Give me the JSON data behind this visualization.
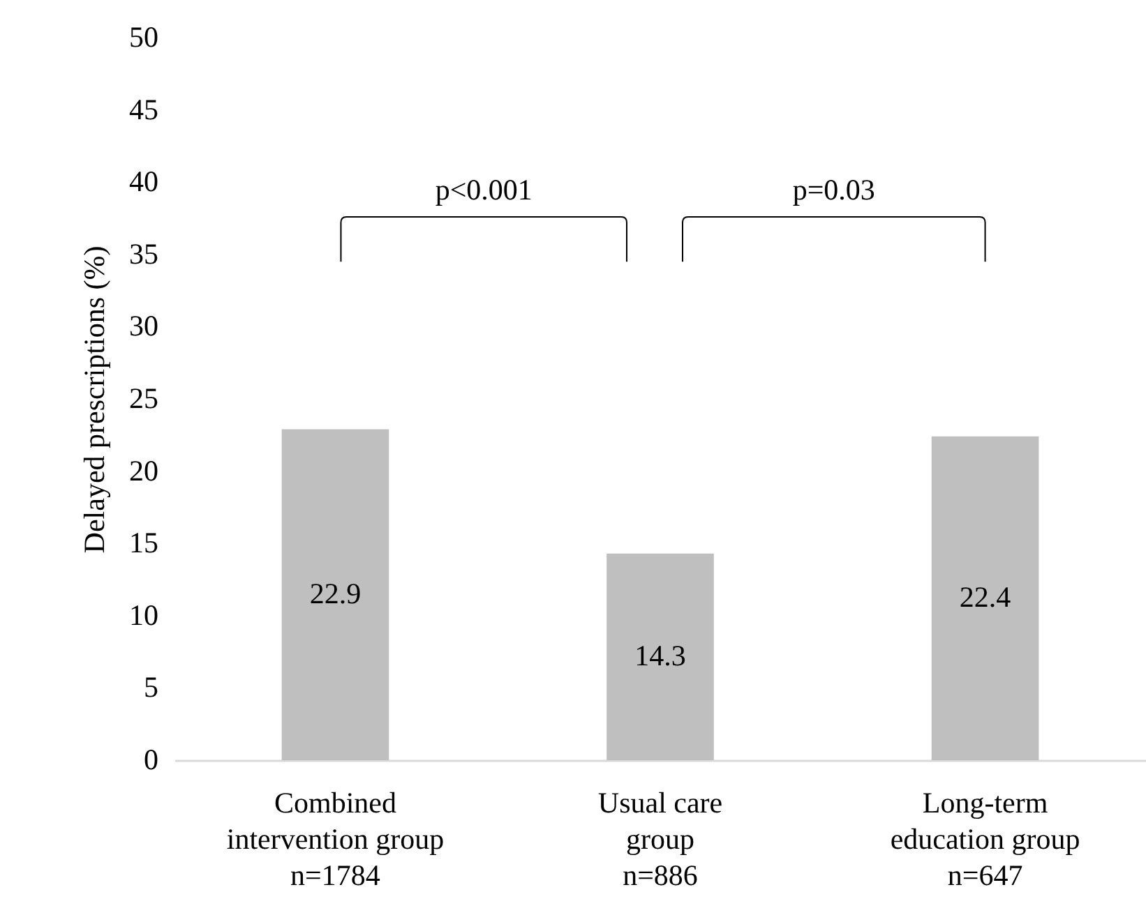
{
  "chart_data": {
    "type": "bar",
    "ylabel": "Delayed prescriptions (%)",
    "categories": [
      "Combined\nintervention group\nn=1784",
      "Usual care\ngroup\nn=886",
      "Long-term\neducation group\nn=647"
    ],
    "values": [
      22.9,
      14.3,
      22.4
    ],
    "color": "#bfbfbf",
    "data_labels": true,
    "ylim": [
      0,
      50
    ],
    "yticks": [
      0,
      5,
      10,
      15,
      20,
      25,
      30,
      35,
      40,
      45,
      50
    ],
    "grid": false,
    "annotations": [
      "p<0.001",
      "p=0.03"
    ]
  }
}
